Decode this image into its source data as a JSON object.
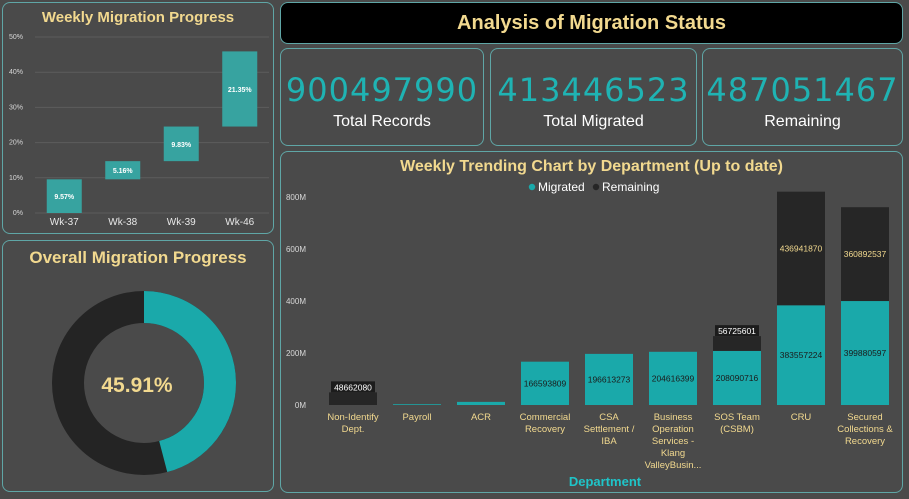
{
  "header": {
    "title": "Analysis of Migration Status"
  },
  "kpis": [
    {
      "value": "900497990",
      "label": "Total Records"
    },
    {
      "value": "413446523",
      "label": "Total Migrated"
    },
    {
      "value": "487051467",
      "label": "Remaining"
    }
  ],
  "weekly": {
    "title": "Weekly Migration Progress"
  },
  "overall": {
    "title": "Overall Migration Progress",
    "label": "45.91%"
  },
  "trend": {
    "title": "Weekly Trending Chart by Department (Up to date)"
  },
  "colors": {
    "teal": "#1aa9aa",
    "dark": "#262626",
    "waterfall": "#37a3a0",
    "gold": "#f2d98f"
  },
  "chart_data": [
    {
      "type": "bar",
      "subtype": "waterfall",
      "title": "Weekly Migration Progress",
      "categories": [
        "Wk-37",
        "Wk-38",
        "Wk-39",
        "Wk-46"
      ],
      "values": [
        9.57,
        5.16,
        9.83,
        21.35
      ],
      "data_labels": [
        "9.57%",
        "5.16%",
        "9.83%",
        "21.35%"
      ],
      "yticks": [
        "0%",
        "10%",
        "20%",
        "30%",
        "40%",
        "50%"
      ],
      "ylim": [
        0,
        50
      ],
      "grid": true
    },
    {
      "type": "pie",
      "subtype": "donut",
      "title": "Overall Migration Progress",
      "values": [
        45.91,
        54.09
      ],
      "center_label": "45.91%"
    },
    {
      "type": "bar",
      "subtype": "stacked",
      "title": "Weekly Trending Chart by Department (Up to date)",
      "xlabel": "Department",
      "legend_position": "top",
      "categories": [
        [
          "Non-Identify",
          "Dept."
        ],
        [
          "Payroll"
        ],
        [
          "ACR"
        ],
        [
          "Commercial",
          "Recovery"
        ],
        [
          "CSA",
          "Settlement /",
          "IBA"
        ],
        [
          "Business",
          "Operation",
          "Services -",
          "Klang",
          "ValleyBusin..."
        ],
        [
          "SOS Team",
          "(CSBM)"
        ],
        [
          "CRU"
        ],
        [
          "Secured",
          "Collections &",
          "Recovery"
        ]
      ],
      "series": [
        {
          "name": "Migrated",
          "values": [
            0,
            3000000,
            12000000,
            166593809,
            196613273,
            204616399,
            208090716,
            383557224,
            399880597
          ],
          "labels": [
            "",
            "",
            "",
            "166593809",
            "196613273",
            "204616399",
            "208090716",
            "383557224",
            "399880597"
          ]
        },
        {
          "name": "Remaining",
          "values": [
            48662080,
            0,
            0,
            0,
            0,
            0,
            56725601,
            436941870,
            360892537
          ],
          "labels": [
            "48662080",
            "",
            "",
            "",
            "",
            "",
            "56725601",
            "436941870",
            "360892537"
          ]
        }
      ],
      "yticks": [
        "0M",
        "200M",
        "400M",
        "600M",
        "800M"
      ],
      "ylim": [
        0,
        800000000
      ]
    }
  ]
}
